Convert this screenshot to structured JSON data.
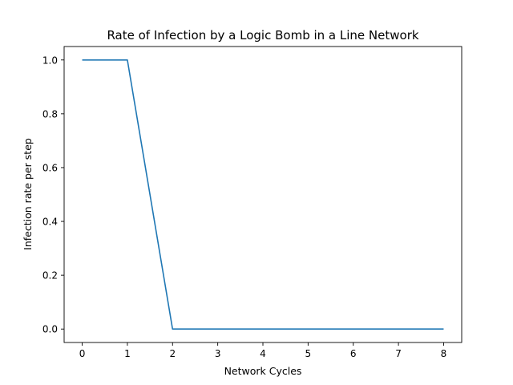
{
  "chart_data": {
    "type": "line",
    "title": "Rate of Infection by a Logic Bomb in a Line Network",
    "xlabel": "Network Cycles",
    "ylabel": "Infection rate per step",
    "xlim": [
      -0.4,
      8.4
    ],
    "ylim": [
      -0.05,
      1.05
    ],
    "xticks": [
      "0",
      "1",
      "2",
      "3",
      "4",
      "5",
      "6",
      "7",
      "8"
    ],
    "yticks": [
      "0.0",
      "0.2",
      "0.4",
      "0.6",
      "0.8",
      "1.0"
    ],
    "grid": false,
    "series": [
      {
        "x": [
          0,
          1,
          2,
          3,
          4,
          5,
          6,
          7,
          8
        ],
        "values": [
          1.0,
          1.0,
          0.0,
          0.0,
          0.0,
          0.0,
          0.0,
          0.0,
          0.0
        ],
        "color": "#1f77b4"
      }
    ]
  }
}
